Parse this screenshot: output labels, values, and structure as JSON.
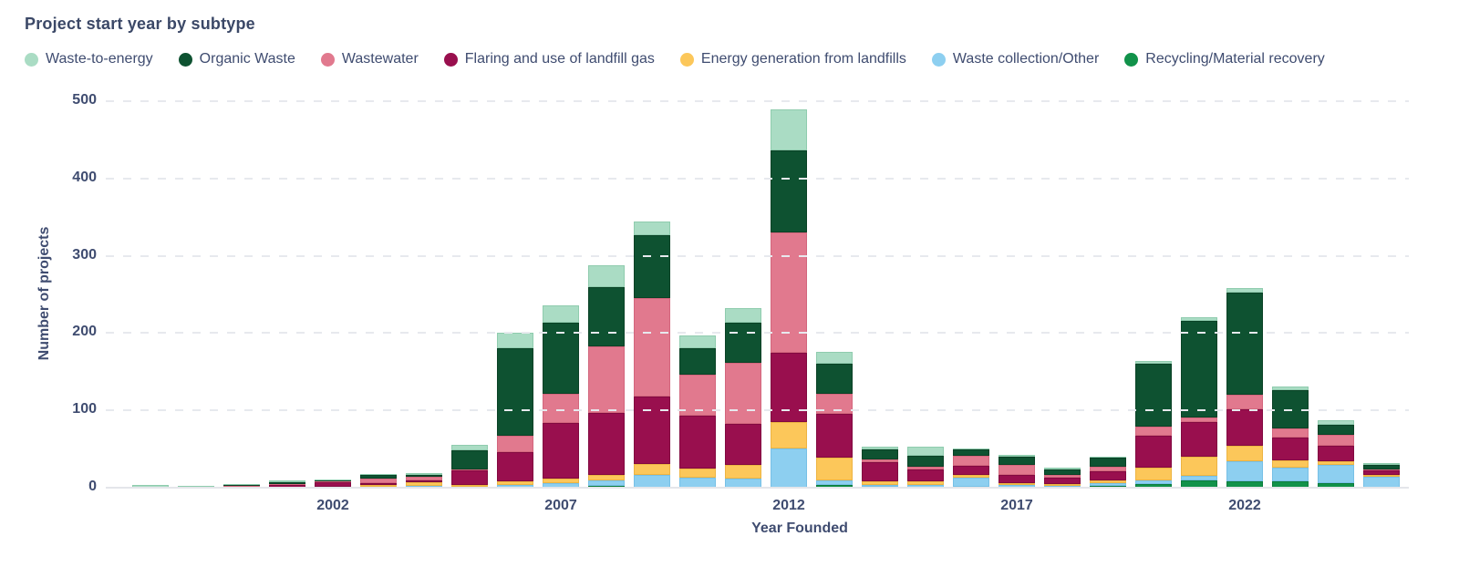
{
  "title": "Project start year by subtype",
  "axes": {
    "y_label": "Number of projects",
    "x_label": "Year Founded"
  },
  "legend": [
    {
      "label": "Waste-to-energy",
      "color": "#aadcc4"
    },
    {
      "label": "Organic Waste",
      "color": "#0e5231"
    },
    {
      "label": "Wastewater",
      "color": "#e1798e"
    },
    {
      "label": "Flaring and use of landfill gas",
      "color": "#990f4e"
    },
    {
      "label": "Energy generation from landfills",
      "color": "#fcc75a"
    },
    {
      "label": "Waste collection/Other",
      "color": "#8dcff0"
    },
    {
      "label": "Recycling/Material recovery",
      "color": "#11924a"
    }
  ],
  "chart_data": {
    "type": "bar",
    "stacked": true,
    "title": "Project start year by subtype",
    "xlabel": "Year Founded",
    "ylabel": "Number of projects",
    "ylim": [
      0,
      500
    ],
    "yticks": [
      0,
      100,
      200,
      300,
      400,
      500
    ],
    "grid": "horizontal-dashed",
    "legend_position": "top",
    "categories": [
      "1998",
      "1999",
      "2000",
      "2001",
      "2002",
      "2003",
      "2004",
      "2005",
      "2006",
      "2007",
      "2008",
      "2009",
      "2010",
      "2011",
      "2012",
      "2013",
      "2014",
      "2015",
      "2016",
      "2017",
      "2018",
      "2019",
      "2020",
      "2021",
      "2022",
      "2023",
      "2024",
      "2025"
    ],
    "x_tick_labels": [
      "2002",
      "2007",
      "2012",
      "2017",
      "2022"
    ],
    "series": [
      {
        "name": "Recycling/Material recovery",
        "color": "#11924a",
        "border": "#0c7c3e",
        "values": [
          0,
          0,
          0,
          0,
          0,
          0,
          0,
          0,
          0,
          0,
          2,
          0,
          0,
          0,
          0,
          3,
          1,
          0,
          1,
          0,
          0,
          2,
          5,
          10,
          8,
          8,
          6,
          0
        ]
      },
      {
        "name": "Waste collection/Other",
        "color": "#8dcff0",
        "border": "#77c0e6",
        "values": [
          0,
          0,
          0,
          0,
          0,
          1,
          2,
          1,
          4,
          6,
          8,
          16,
          13,
          12,
          51,
          6,
          3,
          4,
          12,
          3,
          2,
          4,
          5,
          5,
          26,
          18,
          24,
          14
        ]
      },
      {
        "name": "Energy generation from landfills",
        "color": "#fcc75a",
        "border": "#edb442",
        "values": [
          0,
          0,
          0,
          0,
          1,
          2,
          5,
          3,
          4,
          6,
          7,
          15,
          12,
          17,
          34,
          30,
          4,
          4,
          3,
          3,
          3,
          3,
          16,
          25,
          20,
          10,
          4,
          2
        ]
      },
      {
        "name": "Flaring and use of landfill gas",
        "color": "#990f4e",
        "border": "#820940",
        "values": [
          0,
          0,
          1,
          4,
          6,
          3,
          3,
          18,
          38,
          72,
          80,
          87,
          68,
          54,
          90,
          56,
          25,
          16,
          12,
          11,
          8,
          12,
          41,
          45,
          47,
          29,
          20,
          6
        ]
      },
      {
        "name": "Wastewater",
        "color": "#e1798e",
        "border": "#d3667d",
        "values": [
          0,
          0,
          1,
          1,
          1,
          6,
          4,
          2,
          21,
          37,
          86,
          127,
          53,
          79,
          155,
          27,
          4,
          3,
          13,
          12,
          3,
          6,
          12,
          6,
          19,
          12,
          14,
          2
        ]
      },
      {
        "name": "Organic Waste",
        "color": "#0e5231",
        "border": "#0a4226",
        "values": [
          0,
          0,
          2,
          2,
          2,
          4,
          3,
          25,
          114,
          92,
          77,
          82,
          35,
          52,
          106,
          39,
          12,
          14,
          8,
          11,
          8,
          12,
          82,
          125,
          132,
          49,
          14,
          5
        ]
      },
      {
        "name": "Waste-to-energy",
        "color": "#aadcc4",
        "border": "#8fccae",
        "values": [
          4,
          2,
          1,
          2,
          1,
          2,
          2,
          6,
          19,
          23,
          28,
          17,
          16,
          18,
          53,
          15,
          4,
          12,
          2,
          2,
          2,
          1,
          3,
          5,
          6,
          5,
          5,
          3
        ]
      }
    ]
  }
}
